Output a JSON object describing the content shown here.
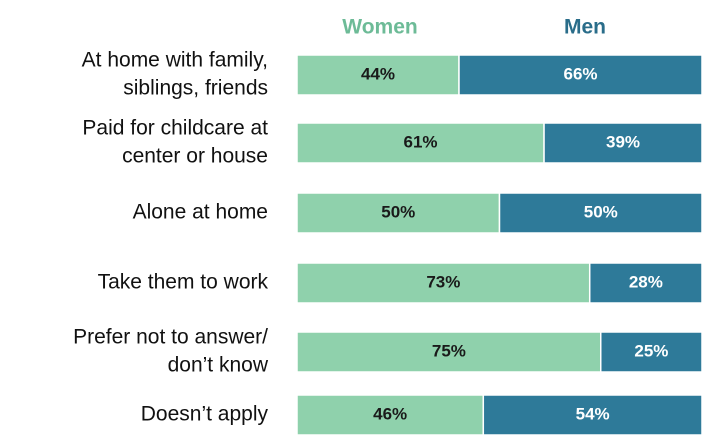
{
  "chart_data": {
    "type": "bar",
    "orientation": "horizontal",
    "stacking": "percent",
    "categories": [
      [
        "At home with family,",
        "siblings, friends"
      ],
      [
        "Paid for childcare at",
        "center or house"
      ],
      [
        "Alone at home"
      ],
      [
        "Take them to work"
      ],
      [
        "Prefer not to answer/",
        "don’t know"
      ],
      [
        "Doesn’t apply"
      ]
    ],
    "series": [
      {
        "name": "Women",
        "color": "#8fd1ac",
        "label_color": "#6dbb97",
        "values": [
          44,
          61,
          50,
          73,
          75,
          46
        ],
        "value_labels": [
          "44%",
          "61%",
          "50%",
          "73%",
          "75%",
          "46%"
        ]
      },
      {
        "name": "Men",
        "color": "#2e7a99",
        "label_color": "#2a6d8a",
        "values": [
          66,
          39,
          50,
          28,
          25,
          54
        ],
        "value_labels": [
          "66%",
          "39%",
          "50%",
          "28%",
          "25%",
          "54%"
        ]
      }
    ]
  }
}
